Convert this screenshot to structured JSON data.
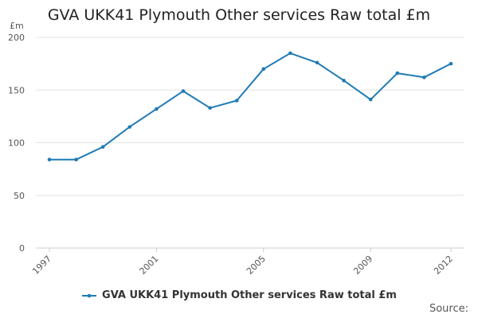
{
  "chart_data": {
    "type": "line",
    "title": "GVA UKK41 Plymouth Other services Raw total £m",
    "ylabel": "£m",
    "xlabel": "",
    "x": [
      1997,
      1998,
      1999,
      2000,
      2001,
      2002,
      2003,
      2004,
      2005,
      2006,
      2007,
      2008,
      2009,
      2010,
      2011,
      2012
    ],
    "series": [
      {
        "name": "GVA UKK41 Plymouth Other services Raw total £m",
        "color": "#1f7bb6",
        "values": [
          84,
          84,
          96,
          115,
          132,
          149,
          133,
          140,
          170,
          185,
          176,
          159,
          141,
          166,
          162,
          175
        ]
      }
    ],
    "xticks": [
      "1997",
      "2001",
      "2005",
      "2009",
      "2012"
    ],
    "yticks": [
      "0",
      "50",
      "100",
      "150",
      "200"
    ],
    "ylim": [
      0,
      200
    ],
    "grid": true,
    "legend_position": "bottom"
  },
  "footer": {
    "source": "Source:"
  }
}
